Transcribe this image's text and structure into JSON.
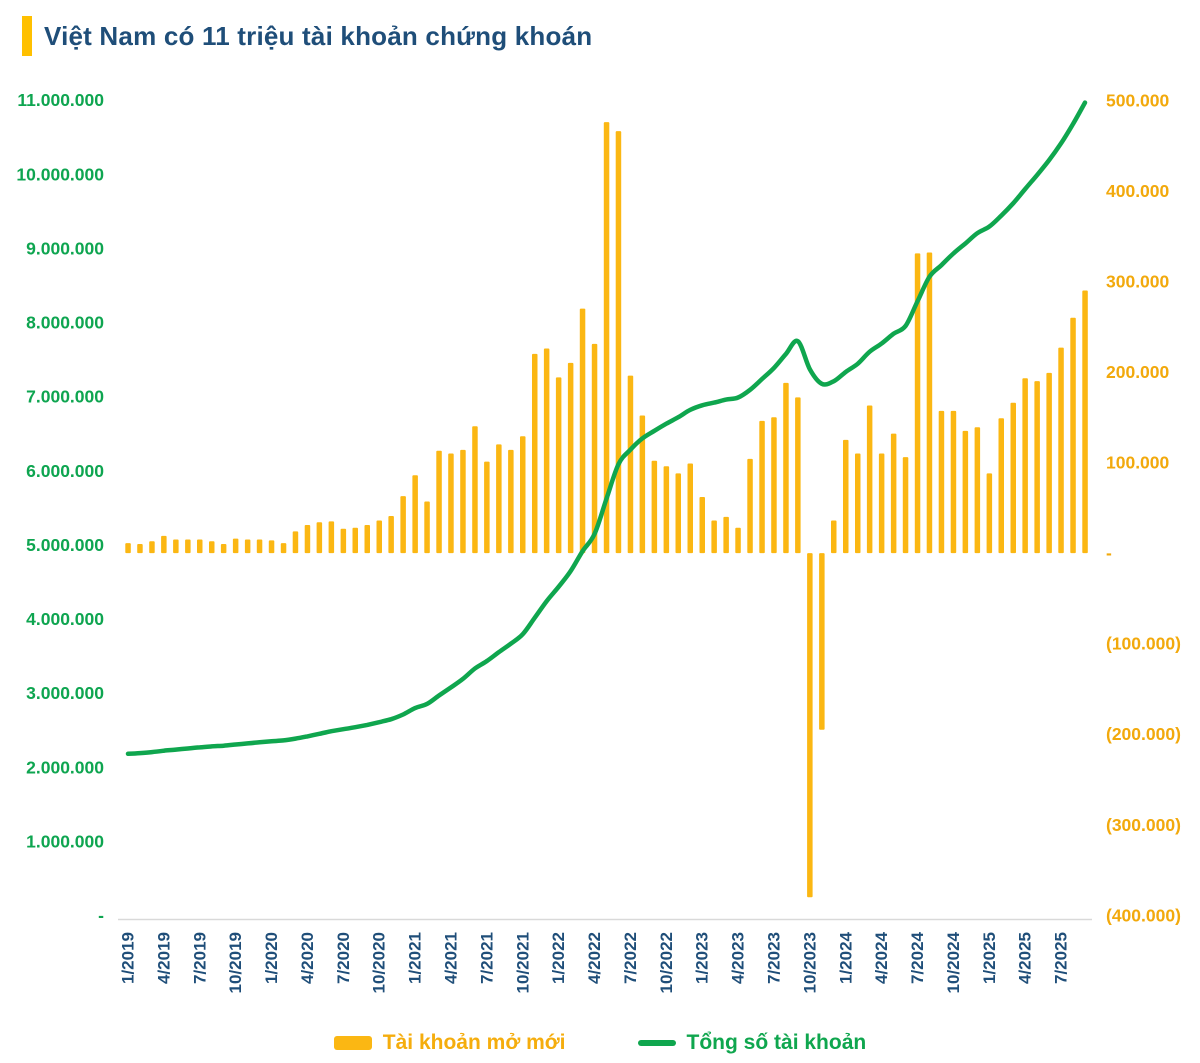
{
  "title": "Việt Nam có 11 triệu tài khoản chứng khoán",
  "colors": {
    "accent_bar": "#FFC000",
    "title": "#1F4E79",
    "bar": "#FBB713",
    "line": "#0FA64E",
    "axis_left_text": "#0EA550",
    "axis_right_text": "#F2A90C",
    "x_label_text": "#1F4E79",
    "axis_line": "#D9D9D9",
    "legend_bar_text": "#F5AD0D",
    "legend_line_text": "#0FA64E"
  },
  "legend": {
    "bar": {
      "label": "Tài khoản mở mới"
    },
    "line": {
      "label": "Tổng số tài khoản"
    }
  },
  "chart_data": {
    "type": "bar+line combo",
    "title": "Việt Nam có 11 triệu tài khoản chứng khoán",
    "grid": false,
    "legend_position": "bottom",
    "x_tick_every": 3,
    "x_months": [
      "1/2019",
      "2/2019",
      "3/2019",
      "4/2019",
      "5/2019",
      "6/2019",
      "7/2019",
      "8/2019",
      "9/2019",
      "10/2019",
      "11/2019",
      "12/2019",
      "1/2020",
      "2/2020",
      "3/2020",
      "4/2020",
      "5/2020",
      "6/2020",
      "7/2020",
      "8/2020",
      "9/2020",
      "10/2020",
      "11/2020",
      "12/2020",
      "1/2021",
      "2/2021",
      "3/2021",
      "4/2021",
      "5/2021",
      "6/2021",
      "7/2021",
      "8/2021",
      "9/2021",
      "10/2021",
      "11/2021",
      "12/2021",
      "1/2022",
      "2/2022",
      "3/2022",
      "4/2022",
      "5/2022",
      "6/2022",
      "7/2022",
      "8/2022",
      "9/2022",
      "10/2022",
      "11/2022",
      "12/2022",
      "1/2023",
      "2/2023",
      "3/2023",
      "4/2023",
      "5/2023",
      "6/2023",
      "7/2023",
      "8/2023",
      "9/2023",
      "10/2023",
      "11/2023",
      "12/2023",
      "1/2024",
      "2/2024",
      "3/2024",
      "4/2024",
      "5/2024",
      "6/2024",
      "7/2024",
      "8/2024",
      "9/2024",
      "10/2024",
      "11/2024",
      "12/2024",
      "1/2025",
      "2/2025",
      "3/2025",
      "4/2025",
      "5/2025",
      "6/2025",
      "7/2025",
      "8/2025",
      "9/2025"
    ],
    "x_tick_labels": [
      "1/2019",
      "4/2019",
      "7/2019",
      "10/2019",
      "1/2020",
      "4/2020",
      "7/2020",
      "10/2020",
      "1/2021",
      "4/2021",
      "7/2021",
      "10/2021",
      "1/2022",
      "4/2022",
      "7/2022",
      "10/2022",
      "1/2023",
      "4/2023",
      "7/2023",
      "10/2023",
      "1/2024",
      "4/2024",
      "7/2024",
      "10/2024",
      "1/2025",
      "4/2025",
      "7/2025"
    ],
    "series": [
      {
        "name": "Tài khoản mở mới",
        "type": "bar",
        "axis": "right",
        "values": [
          11000,
          10000,
          13000,
          19000,
          15000,
          15000,
          15000,
          13000,
          10000,
          16000,
          15000,
          15000,
          14000,
          11000,
          24000,
          31000,
          34000,
          35000,
          27000,
          28000,
          31000,
          36000,
          41000,
          63000,
          86000,
          57000,
          113000,
          110000,
          114000,
          140000,
          101000,
          120000,
          114000,
          129000,
          220000,
          226000,
          194000,
          210000,
          270000,
          231000,
          476000,
          466000,
          196000,
          152000,
          102000,
          96000,
          88000,
          99000,
          62000,
          36000,
          40000,
          28000,
          104000,
          146000,
          150000,
          188000,
          172000,
          -380000,
          -195000,
          36000,
          125000,
          110000,
          163000,
          110000,
          132000,
          106000,
          331000,
          332000,
          157000,
          157000,
          135000,
          139000,
          88000,
          149000,
          166000,
          193000,
          190000,
          199000,
          227000,
          260000,
          290000
        ]
      },
      {
        "name": "Tổng số tài khoản",
        "type": "line",
        "axis": "left",
        "values": [
          2181000,
          2191000,
          2204000,
          2223000,
          2238000,
          2253000,
          2268000,
          2281000,
          2291000,
          2307000,
          2322000,
          2337000,
          2351000,
          2362000,
          2386000,
          2417000,
          2451000,
          2486000,
          2513000,
          2541000,
          2572000,
          2608000,
          2649000,
          2712000,
          2798000,
          2855000,
          2968000,
          3078000,
          3192000,
          3332000,
          3433000,
          3553000,
          3667000,
          3796000,
          4016000,
          4242000,
          4436000,
          4646000,
          4916000,
          5147000,
          5623000,
          6089000,
          6285000,
          6437000,
          6539000,
          6635000,
          6723000,
          6822000,
          6884000,
          6920000,
          6960000,
          6988000,
          7092000,
          7238000,
          7388000,
          7576000,
          7748000,
          7368000,
          7173000,
          7209000,
          7334000,
          7444000,
          7607000,
          7717000,
          7849000,
          7955000,
          8286000,
          8618000,
          8775000,
          8932000,
          9067000,
          9206000,
          9294000,
          9443000,
          9609000,
          9802000,
          9992000,
          10191000,
          10418000,
          10678000,
          10968000
        ]
      }
    ],
    "left_axis": {
      "min": 0,
      "max": 11000000,
      "step": 1000000,
      "tick_labels": [
        "-",
        "1.000.000",
        "2.000.000",
        "3.000.000",
        "4.000.000",
        "5.000.000",
        "6.000.000",
        "7.000.000",
        "8.000.000",
        "9.000.000",
        "10.000.000",
        "11.000.000"
      ]
    },
    "right_axis": {
      "min": -400000,
      "max": 500000,
      "step": 100000,
      "tick_labels": [
        "(400.000)",
        "(300.000)",
        "(200.000)",
        "(100.000)",
        "-",
        "100.000",
        "200.000",
        "300.000",
        "400.000",
        "500.000"
      ]
    }
  }
}
